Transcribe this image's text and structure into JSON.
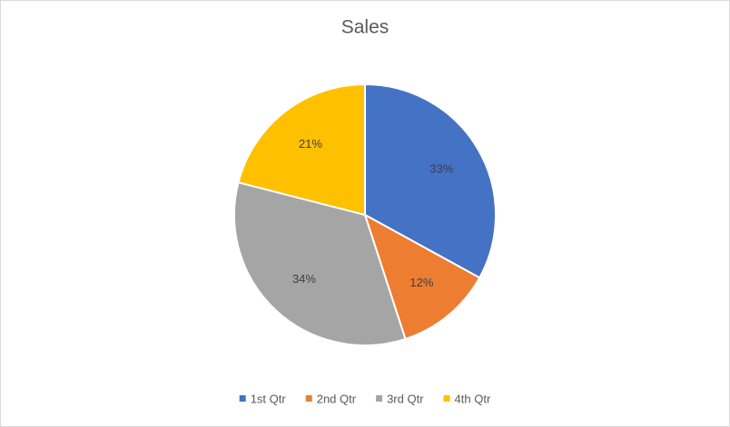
{
  "chart_data": {
    "type": "pie",
    "title": "Sales",
    "categories": [
      "1st Qtr",
      "2nd Qtr",
      "3rd Qtr",
      "4th Qtr"
    ],
    "values": [
      33,
      12,
      34,
      21
    ],
    "value_labels": [
      "33%",
      "12%",
      "34%",
      "21%"
    ],
    "colors": [
      "#4472c4",
      "#ed7d31",
      "#a5a5a5",
      "#ffc000"
    ],
    "legend": "bottom"
  }
}
